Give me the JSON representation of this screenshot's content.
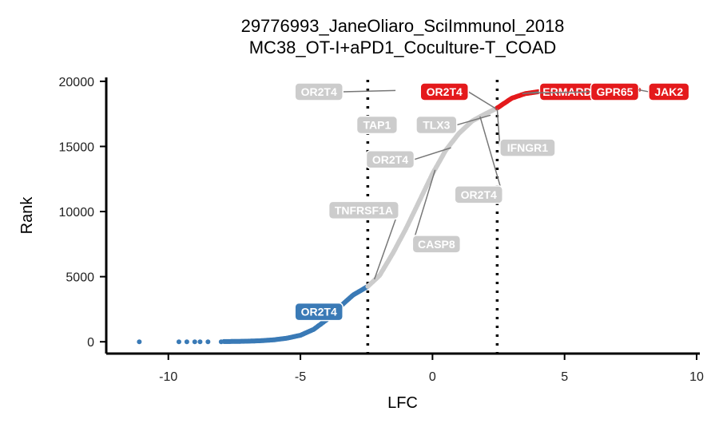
{
  "chart_data": {
    "type": "scatter",
    "title": "29776993_JaneOliaro_SciImmunol_2018",
    "subtitle": "MC38_OT-I+aPD1_Coculture-T_COAD",
    "xlabel": "LFC",
    "ylabel": "Rank",
    "xlim": [
      -12.2,
      10
    ],
    "ylim": [
      -600,
      20300
    ],
    "x_ticks": [
      -10,
      -5,
      0,
      5,
      10
    ],
    "x_tick_labels": [
      "-10",
      "-5",
      "0",
      "5",
      "10"
    ],
    "y_ticks": [
      0,
      5000,
      10000,
      15000,
      20000
    ],
    "y_tick_labels": [
      "0",
      "5000",
      "10000",
      "15000",
      "20000"
    ],
    "thresholds": [
      -2.45,
      2.45
    ],
    "grid": false,
    "legend": "none",
    "colors": {
      "low": "#3a7ab6",
      "mid": "#cccccc",
      "high": "#e41a1c"
    },
    "curve_points": [
      [
        -11.1,
        0
      ],
      [
        -9.6,
        2
      ],
      [
        -9.0,
        4
      ],
      [
        -8.5,
        8
      ],
      [
        -8.0,
        14
      ],
      [
        -7.5,
        25
      ],
      [
        -7.0,
        45
      ],
      [
        -6.5,
        80
      ],
      [
        -6.0,
        150
      ],
      [
        -5.5,
        280
      ],
      [
        -5.0,
        500
      ],
      [
        -4.5,
        950
      ],
      [
        -4.0,
        1700
      ],
      [
        -3.5,
        2700
      ],
      [
        -3.0,
        3600
      ],
      [
        -2.45,
        4250
      ],
      [
        -2.0,
        5100
      ],
      [
        -1.5,
        6800
      ],
      [
        -1.0,
        8700
      ],
      [
        -0.5,
        10800
      ],
      [
        0.0,
        12900
      ],
      [
        0.5,
        14700
      ],
      [
        1.0,
        16000
      ],
      [
        1.5,
        16950
      ],
      [
        2.0,
        17500
      ],
      [
        2.45,
        17950
      ],
      [
        3.0,
        18700
      ],
      [
        3.5,
        19050
      ],
      [
        4.0,
        19200
      ],
      [
        5.0,
        19300
      ],
      [
        6.0,
        19330
      ],
      [
        7.0,
        19345
      ],
      [
        7.8,
        19350
      ]
    ],
    "isolated_points": [
      [
        -11.1,
        0
      ],
      [
        -9.6,
        0
      ],
      [
        -9.3,
        0
      ],
      [
        -9.0,
        0
      ],
      [
        -8.8,
        0
      ],
      [
        -8.5,
        0
      ],
      [
        -8.0,
        0
      ]
    ],
    "labels": [
      {
        "text": "OR2T4",
        "x": -1.4,
        "y": 19300,
        "lx": -4.3,
        "ly": 19200,
        "group": "mid"
      },
      {
        "text": "OR2T4",
        "x": 2.4,
        "y": 17900,
        "lx": 0.45,
        "ly": 19200,
        "group": "high"
      },
      {
        "text": "ERMARD",
        "x": 3.4,
        "y": 19050,
        "lx": 5.1,
        "ly": 19200,
        "group": "high"
      },
      {
        "text": "GPR65",
        "x": 3.6,
        "y": 19100,
        "lx": 6.9,
        "ly": 19200,
        "group": "high"
      },
      {
        "text": "JAK2",
        "x": 7.8,
        "y": 19350,
        "lx": 8.95,
        "ly": 19200,
        "group": "high"
      },
      {
        "text": "TAP1",
        "x": -1.25,
        "y": 16700,
        "lx": -2.1,
        "ly": 16650,
        "group": "mid"
      },
      {
        "text": "TLX3",
        "x": 2.2,
        "y": 17400,
        "lx": 0.15,
        "ly": 16650,
        "group": "mid"
      },
      {
        "text": "IFNGR1",
        "x": 2.45,
        "y": 17900,
        "lx": 3.6,
        "ly": 14900,
        "group": "mid"
      },
      {
        "text": "OR2T4",
        "x": 0.7,
        "y": 14900,
        "lx": -1.6,
        "ly": 14000,
        "group": "mid"
      },
      {
        "text": "OR2T4",
        "x": 1.8,
        "y": 17300,
        "lx": 1.75,
        "ly": 11300,
        "group": "mid"
      },
      {
        "text": "TNFRSF1A",
        "x": -2.2,
        "y": 4800,
        "lx": -2.6,
        "ly": 10100,
        "group": "mid"
      },
      {
        "text": "CASP8",
        "x": 0.1,
        "y": 13200,
        "lx": 0.15,
        "ly": 7500,
        "group": "mid"
      },
      {
        "text": "OR2T4",
        "x": -4.2,
        "y": 1200,
        "lx": -4.3,
        "ly": 2300,
        "group": "low"
      }
    ]
  }
}
